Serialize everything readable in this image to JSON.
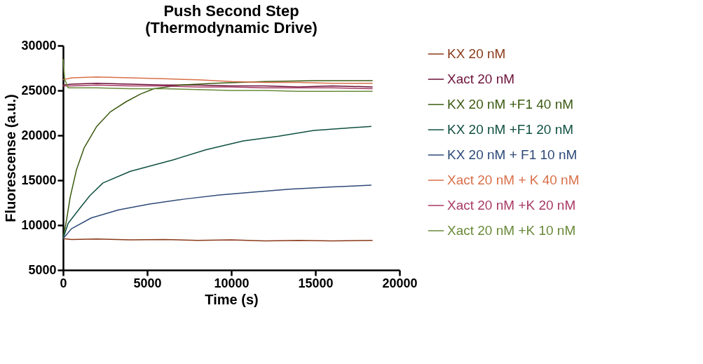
{
  "chart_data": {
    "type": "line",
    "title": [
      "Push Second Step",
      "(Thermodynamic Drive)"
    ],
    "xlabel": "Time (s)",
    "ylabel": "Fluorescense (a.u.)",
    "xlim": [
      0,
      20000
    ],
    "xticks": [
      0,
      5000,
      10000,
      15000,
      20000
    ],
    "ylim": [
      5000,
      30000
    ],
    "yticks": [
      5000,
      10000,
      15000,
      20000,
      25000,
      30000
    ],
    "grid": false,
    "legend": "right",
    "marker": "none",
    "line_style": "solid",
    "series": [
      {
        "name": "KX 20 nM",
        "color": "#8b3a1a",
        "x": [
          0,
          500,
          2000,
          4000,
          6000,
          8000,
          10000,
          12000,
          14000,
          16000,
          18400
        ],
        "values": [
          8500,
          8400,
          8450,
          8350,
          8400,
          8300,
          8350,
          8250,
          8300,
          8250,
          8300
        ]
      },
      {
        "name": "Xact 20 nM",
        "color": "#6b1038",
        "x": [
          0,
          500,
          2000,
          4000,
          6000,
          8000,
          10000,
          12000,
          14000,
          16000,
          18400
        ],
        "values": [
          25600,
          25700,
          25800,
          25700,
          25600,
          25600,
          25500,
          25500,
          25400,
          25500,
          25400
        ]
      },
      {
        "name": "KX 20 nM +F1 40 nM",
        "color": "#3b5a10",
        "x": [
          0,
          200,
          420,
          800,
          1250,
          2000,
          2800,
          3750,
          4600,
          5400,
          7000,
          9000,
          12000,
          15000,
          18400
        ],
        "values": [
          8500,
          10500,
          13100,
          16200,
          18600,
          21000,
          22600,
          23750,
          24600,
          25200,
          25600,
          25800,
          26000,
          26100,
          26100
        ]
      },
      {
        "name": "KX 20 nM +F1 20 nM",
        "color": "#0f5040",
        "x": [
          0,
          300,
          960,
          1600,
          2370,
          4000,
          6540,
          8500,
          10700,
          12800,
          14900,
          16800,
          18330
        ],
        "values": [
          8500,
          10200,
          11800,
          13300,
          14700,
          16000,
          17270,
          18400,
          19370,
          19900,
          20550,
          20800,
          21000
        ]
      },
      {
        "name": "KX 20 nM + F1 10 nM",
        "color": "#2e4a78",
        "x": [
          0,
          500,
          1670,
          3300,
          5125,
          7200,
          9300,
          11400,
          13460,
          16000,
          18330
        ],
        "values": [
          8500,
          9600,
          10800,
          11700,
          12340,
          12900,
          13360,
          13700,
          14000,
          14250,
          14450
        ]
      },
      {
        "name": "Xact 20 nM + K 40 nM",
        "color": "#d9704a",
        "x": [
          0,
          500,
          2000,
          4000,
          6000,
          8000,
          10000,
          12000,
          14000,
          16000,
          18400
        ],
        "values": [
          26200,
          26400,
          26500,
          26400,
          26300,
          26200,
          26000,
          25900,
          25900,
          25800,
          25800
        ]
      },
      {
        "name": "Xact 20 nM +K 20 nM",
        "color": "#a83a65",
        "x": [
          0,
          500,
          2000,
          4000,
          6000,
          8000,
          10000,
          12000,
          14000,
          16000,
          18400
        ],
        "values": [
          25500,
          25500,
          25600,
          25500,
          25500,
          25400,
          25400,
          25300,
          25300,
          25300,
          25200
        ]
      },
      {
        "name": "Xact 20 nM +K 10 nM",
        "color": "#6a8a3a",
        "x": [
          0,
          100,
          300,
          2000,
          4000,
          6000,
          8000,
          10000,
          12000,
          14000,
          16000,
          18400
        ],
        "values": [
          28500,
          26200,
          25300,
          25300,
          25200,
          25200,
          25100,
          25000,
          25000,
          24900,
          24900,
          24900
        ]
      }
    ]
  }
}
